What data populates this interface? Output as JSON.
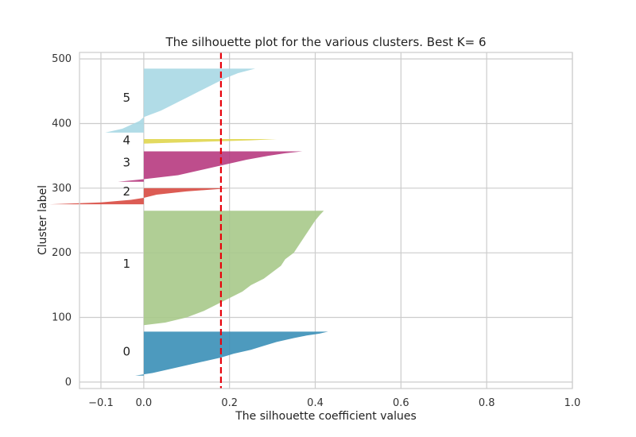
{
  "chart_data": {
    "type": "area",
    "title": "The silhouette plot for the various clusters. Best K= 6",
    "xlabel": "The silhouette coefficient values",
    "ylabel": "Cluster label",
    "xlim": [
      -0.15,
      1.0
    ],
    "ylim": [
      -10,
      510
    ],
    "xticks": [
      -0.1,
      0.0,
      0.2,
      0.4,
      0.6,
      0.8,
      1.0
    ],
    "xtick_labels": [
      "−0.1",
      "0.0",
      "0.2",
      "0.4",
      "0.6",
      "0.8",
      "1.0"
    ],
    "yticks": [
      0,
      100,
      200,
      300,
      400,
      500
    ],
    "ytick_labels": [
      "0",
      "100",
      "200",
      "300",
      "400",
      "500"
    ],
    "grid": true,
    "average_silhouette": 0.18,
    "average_line_color": "#e8000b",
    "clusters": [
      {
        "label": "0",
        "color": "#3a8fb7",
        "y_range": [
          10,
          78
        ],
        "profile": [
          [
            10,
            -0.02
          ],
          [
            14,
            0.02
          ],
          [
            20,
            0.06
          ],
          [
            26,
            0.1
          ],
          [
            32,
            0.14
          ],
          [
            38,
            0.18
          ],
          [
            44,
            0.21
          ],
          [
            50,
            0.25
          ],
          [
            56,
            0.28
          ],
          [
            62,
            0.31
          ],
          [
            68,
            0.35
          ],
          [
            72,
            0.38
          ],
          [
            75,
            0.41
          ],
          [
            78,
            0.43
          ]
        ],
        "label_y": 47
      },
      {
        "label": "1",
        "color": "#a7c98a",
        "y_range": [
          88,
          265
        ],
        "profile": [
          [
            88,
            0.0
          ],
          [
            92,
            0.05
          ],
          [
            100,
            0.1
          ],
          [
            110,
            0.14
          ],
          [
            120,
            0.17
          ],
          [
            130,
            0.2
          ],
          [
            140,
            0.23
          ],
          [
            150,
            0.25
          ],
          [
            160,
            0.28
          ],
          [
            170,
            0.3
          ],
          [
            180,
            0.32
          ],
          [
            190,
            0.33
          ],
          [
            200,
            0.35
          ],
          [
            210,
            0.36
          ],
          [
            220,
            0.37
          ],
          [
            230,
            0.38
          ],
          [
            240,
            0.39
          ],
          [
            250,
            0.4
          ],
          [
            258,
            0.41
          ],
          [
            265,
            0.42
          ]
        ],
        "label_y": 183
      },
      {
        "label": "2",
        "color": "#d84a41",
        "y_range": [
          275,
          300
        ],
        "profile": [
          [
            275,
            -0.22
          ],
          [
            278,
            -0.1
          ],
          [
            282,
            -0.03
          ],
          [
            285,
            0.0
          ],
          [
            290,
            0.03
          ],
          [
            295,
            0.1
          ],
          [
            300,
            0.2
          ]
        ],
        "label_y": 295
      },
      {
        "label": "3",
        "color": "#b73a7f",
        "y_range": [
          310,
          357
        ],
        "profile": [
          [
            310,
            -0.06
          ],
          [
            314,
            0.0
          ],
          [
            320,
            0.08
          ],
          [
            326,
            0.12
          ],
          [
            332,
            0.16
          ],
          [
            338,
            0.2
          ],
          [
            344,
            0.24
          ],
          [
            350,
            0.29
          ],
          [
            354,
            0.33
          ],
          [
            357,
            0.37
          ]
        ],
        "label_y": 340
      },
      {
        "label": "4",
        "color": "#e0d64e",
        "y_range": [
          369,
          376
        ],
        "profile": [
          [
            369,
            0.0
          ],
          [
            370,
            0.05
          ],
          [
            372,
            0.15
          ],
          [
            374,
            0.25
          ],
          [
            376,
            0.31
          ]
        ],
        "label_y": 374
      },
      {
        "label": "5",
        "color": "#a8d8e4",
        "y_range": [
          386,
          485
        ],
        "profile": [
          [
            386,
            -0.09
          ],
          [
            392,
            -0.05
          ],
          [
            398,
            -0.03
          ],
          [
            404,
            -0.01
          ],
          [
            410,
            0.0
          ],
          [
            420,
            0.04
          ],
          [
            430,
            0.07
          ],
          [
            440,
            0.1
          ],
          [
            450,
            0.13
          ],
          [
            460,
            0.16
          ],
          [
            470,
            0.19
          ],
          [
            478,
            0.22
          ],
          [
            485,
            0.26
          ]
        ],
        "label_y": 440
      }
    ]
  }
}
